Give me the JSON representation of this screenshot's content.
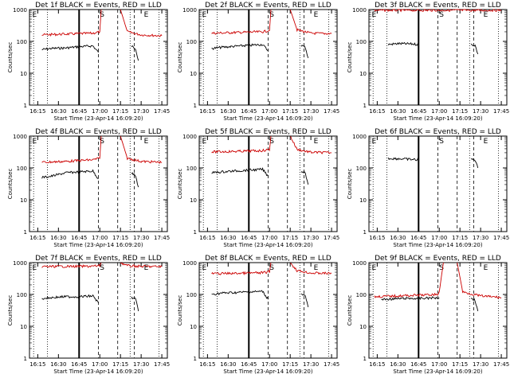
{
  "chart_data": [
    {
      "type": "line",
      "title": "Det 1f BLACK = Events, RED = LLD",
      "ylabel": "Counts/sec",
      "xlabel": "Start Time (23-Apr-14 16:09:20)",
      "x_ticks": [
        "16:15",
        "16:30",
        "16:45",
        "17:00",
        "17:15",
        "17:30",
        "17:45"
      ],
      "y_ticks": [
        "1",
        "10",
        "100",
        "1000"
      ],
      "ylim": [
        1,
        1000
      ],
      "y_scale": "log",
      "markers": [
        "E",
        "S",
        "E"
      ],
      "series": [
        {
          "color": "#000000",
          "segments": [
            [
              [
                "16:18",
                55
              ],
              [
                "16:25",
                60
              ],
              [
                "16:35",
                62
              ],
              [
                "16:45",
                68
              ],
              [
                "16:55",
                72
              ],
              [
                "16:59",
                45
              ]
            ],
            [
              [
                "17:23",
                70
              ],
              [
                "17:26",
                60
              ],
              [
                "17:28",
                25
              ]
            ]
          ]
        },
        {
          "color": "#cc0000",
          "segments": [
            [
              [
                "16:18",
                160
              ],
              [
                "16:35",
                170
              ],
              [
                "16:45",
                175
              ],
              [
                "16:55",
                180
              ],
              [
                "17:00",
                200
              ],
              [
                "17:01",
                1000
              ]
            ],
            [
              [
                "17:15",
                1000
              ],
              [
                "17:20",
                200
              ],
              [
                "17:30",
                160
              ],
              [
                "17:45",
                150
              ]
            ]
          ]
        }
      ]
    },
    {
      "type": "line",
      "title": "Det 2f BLACK = Events, RED = LLD",
      "ylabel": "Counts/sec",
      "xlabel": "Start Time (23-Apr-14 16:09:20)",
      "x_ticks": [
        "16:15",
        "16:30",
        "16:45",
        "17:00",
        "17:15",
        "17:30",
        "17:45"
      ],
      "y_ticks": [
        "1",
        "10",
        "100",
        "1000"
      ],
      "ylim": [
        1,
        1000
      ],
      "y_scale": "log",
      "markers": [
        "E",
        "S",
        "E"
      ],
      "series": [
        {
          "color": "#000000",
          "segments": [
            [
              [
                "16:18",
                60
              ],
              [
                "16:25",
                65
              ],
              [
                "16:35",
                70
              ],
              [
                "16:45",
                75
              ],
              [
                "16:55",
                80
              ],
              [
                "16:59",
                50
              ]
            ],
            [
              [
                "17:23",
                75
              ],
              [
                "17:26",
                65
              ],
              [
                "17:28",
                30
              ]
            ]
          ]
        },
        {
          "color": "#cc0000",
          "segments": [
            [
              [
                "16:18",
                180
              ],
              [
                "16:35",
                190
              ],
              [
                "16:45",
                195
              ],
              [
                "16:55",
                200
              ],
              [
                "17:00",
                220
              ],
              [
                "17:01",
                1000
              ]
            ],
            [
              [
                "17:15",
                1000
              ],
              [
                "17:20",
                230
              ],
              [
                "17:30",
                180
              ],
              [
                "17:45",
                175
              ]
            ]
          ]
        }
      ]
    },
    {
      "type": "line",
      "title": "Det 3f BLACK = Events, RED = LLD",
      "ylabel": "Counts/sec",
      "xlabel": "Start Time (23-Apr-14 16:09:20)",
      "x_ticks": [
        "16:15",
        "16:30",
        "16:45",
        "17:00",
        "17:15",
        "17:30",
        "17:45"
      ],
      "y_ticks": [
        "1",
        "10",
        "100",
        "1000"
      ],
      "ylim": [
        1,
        1000
      ],
      "y_scale": "log",
      "markers": [
        "E",
        "S",
        "E"
      ],
      "series": [
        {
          "color": "#000000",
          "segments": [
            [
              [
                "16:23",
                80
              ],
              [
                "16:30",
                85
              ],
              [
                "16:40",
                83
              ],
              [
                "16:45",
                80
              ]
            ],
            [
              [
                "17:23",
                80
              ],
              [
                "17:26",
                75
              ],
              [
                "17:28",
                40
              ]
            ]
          ]
        },
        {
          "color": "#cc0000",
          "segments": [
            [
              [
                "16:13",
                950
              ],
              [
                "16:45",
                950
              ],
              [
                "17:00",
                950
              ],
              [
                "17:30",
                950
              ],
              [
                "17:45",
                950
              ]
            ]
          ]
        }
      ]
    },
    {
      "type": "line",
      "title": "Det 4f BLACK = Events, RED = LLD",
      "ylabel": "Counts/sec",
      "xlabel": "Start Time (23-Apr-14 16:09:20)",
      "x_ticks": [
        "16:15",
        "16:30",
        "16:45",
        "17:00",
        "17:15",
        "17:30",
        "17:45"
      ],
      "y_ticks": [
        "1",
        "10",
        "100",
        "1000"
      ],
      "ylim": [
        1,
        1000
      ],
      "y_scale": "log",
      "markers": [
        "E",
        "S",
        "E"
      ],
      "series": [
        {
          "color": "#000000",
          "segments": [
            [
              [
                "16:18",
                50
              ],
              [
                "16:25",
                55
              ],
              [
                "16:35",
                70
              ],
              [
                "16:45",
                75
              ],
              [
                "16:55",
                80
              ],
              [
                "16:59",
                45
              ]
            ],
            [
              [
                "17:23",
                70
              ],
              [
                "17:26",
                55
              ],
              [
                "17:28",
                25
              ]
            ]
          ]
        },
        {
          "color": "#cc0000",
          "segments": [
            [
              [
                "16:18",
                150
              ],
              [
                "16:35",
                160
              ],
              [
                "16:45",
                170
              ],
              [
                "16:55",
                180
              ],
              [
                "17:00",
                200
              ],
              [
                "17:01",
                1000
              ]
            ],
            [
              [
                "17:15",
                1000
              ],
              [
                "17:20",
                200
              ],
              [
                "17:30",
                160
              ],
              [
                "17:45",
                150
              ]
            ]
          ]
        }
      ]
    },
    {
      "type": "line",
      "title": "Det 5f BLACK = Events, RED = LLD",
      "ylabel": "Counts/sec",
      "xlabel": "Start Time (23-Apr-14 16:09:20)",
      "x_ticks": [
        "16:15",
        "16:30",
        "16:45",
        "17:00",
        "17:15",
        "17:30",
        "17:45"
      ],
      "y_ticks": [
        "1",
        "10",
        "100",
        "1000"
      ],
      "ylim": [
        1,
        1000
      ],
      "y_scale": "log",
      "markers": [
        "E",
        "S",
        "E"
      ],
      "series": [
        {
          "color": "#000000",
          "segments": [
            [
              [
                "16:18",
                70
              ],
              [
                "16:25",
                75
              ],
              [
                "16:35",
                80
              ],
              [
                "16:45",
                85
              ],
              [
                "16:55",
                90
              ],
              [
                "16:59",
                55
              ]
            ],
            [
              [
                "17:23",
                80
              ],
              [
                "17:26",
                70
              ],
              [
                "17:28",
                30
              ]
            ]
          ]
        },
        {
          "color": "#cc0000",
          "segments": [
            [
              [
                "16:18",
                320
              ],
              [
                "16:35",
                330
              ],
              [
                "16:45",
                340
              ],
              [
                "16:55",
                350
              ],
              [
                "17:00",
                380
              ],
              [
                "17:01",
                1000
              ]
            ],
            [
              [
                "17:15",
                1000
              ],
              [
                "17:20",
                380
              ],
              [
                "17:30",
                310
              ],
              [
                "17:45",
                300
              ]
            ]
          ]
        }
      ]
    },
    {
      "type": "line",
      "title": "Det 6f BLACK = Events, RED = LLD",
      "ylabel": "Counts/sec",
      "xlabel": "Start Time (23-Apr-14 16:09:20)",
      "x_ticks": [
        "16:15",
        "16:30",
        "16:45",
        "17:00",
        "17:15",
        "17:30",
        "17:45"
      ],
      "y_ticks": [
        "1",
        "10",
        "100",
        "1000"
      ],
      "ylim": [
        1,
        1000
      ],
      "y_scale": "log",
      "markers": [
        "E",
        "S",
        "E"
      ],
      "series": [
        {
          "color": "#000000",
          "segments": [
            [
              [
                "16:23",
                200
              ],
              [
                "16:30",
                195
              ],
              [
                "16:40",
                185
              ],
              [
                "16:45",
                180
              ]
            ],
            [
              [
                "17:23",
                190
              ],
              [
                "17:26",
                180
              ],
              [
                "17:28",
                100
              ]
            ]
          ]
        }
      ]
    },
    {
      "type": "line",
      "title": "Det 7f BLACK = Events, RED = LLD",
      "ylabel": "Counts/sec",
      "xlabel": "Start Time (23-Apr-14 16:09:20)",
      "x_ticks": [
        "16:15",
        "16:30",
        "16:45",
        "17:00",
        "17:15",
        "17:30",
        "17:45"
      ],
      "y_ticks": [
        "1",
        "10",
        "100",
        "1000"
      ],
      "ylim": [
        1,
        1000
      ],
      "y_scale": "log",
      "markers": [
        "E",
        "S",
        "E"
      ],
      "series": [
        {
          "color": "#000000",
          "segments": [
            [
              [
                "16:18",
                75
              ],
              [
                "16:25",
                80
              ],
              [
                "16:35",
                85
              ],
              [
                "16:45",
                85
              ],
              [
                "16:55",
                90
              ],
              [
                "16:59",
                55
              ]
            ],
            [
              [
                "17:23",
                80
              ],
              [
                "17:26",
                70
              ],
              [
                "17:28",
                30
              ]
            ]
          ]
        },
        {
          "color": "#cc0000",
          "segments": [
            [
              [
                "16:18",
                750
              ],
              [
                "16:35",
                760
              ],
              [
                "16:45",
                760
              ],
              [
                "16:55",
                770
              ],
              [
                "17:00",
                800
              ],
              [
                "17:01",
                1000
              ]
            ],
            [
              [
                "17:15",
                1000
              ],
              [
                "17:20",
                800
              ],
              [
                "17:30",
                760
              ],
              [
                "17:45",
                750
              ]
            ]
          ]
        }
      ]
    },
    {
      "type": "line",
      "title": "Det 8f BLACK = Events, RED = LLD",
      "ylabel": "Counts/sec",
      "xlabel": "Start Time (23-Apr-14 16:09:20)",
      "x_ticks": [
        "16:15",
        "16:30",
        "16:45",
        "17:00",
        "17:15",
        "17:30",
        "17:45"
      ],
      "y_ticks": [
        "1",
        "10",
        "100",
        "1000"
      ],
      "ylim": [
        1,
        1000
      ],
      "y_scale": "log",
      "markers": [
        "E",
        "S",
        "E"
      ],
      "series": [
        {
          "color": "#000000",
          "segments": [
            [
              [
                "16:18",
                100
              ],
              [
                "16:25",
                110
              ],
              [
                "16:35",
                115
              ],
              [
                "16:45",
                120
              ],
              [
                "16:55",
                125
              ],
              [
                "16:59",
                70
              ]
            ],
            [
              [
                "17:23",
                110
              ],
              [
                "17:26",
                90
              ],
              [
                "17:28",
                40
              ]
            ]
          ]
        },
        {
          "color": "#cc0000",
          "segments": [
            [
              [
                "16:18",
                450
              ],
              [
                "16:35",
                460
              ],
              [
                "16:45",
                470
              ],
              [
                "16:55",
                480
              ],
              [
                "17:00",
                520
              ],
              [
                "17:01",
                1000
              ]
            ],
            [
              [
                "17:15",
                1000
              ],
              [
                "17:20",
                560
              ],
              [
                "17:30",
                470
              ],
              [
                "17:45",
                460
              ]
            ]
          ]
        }
      ]
    },
    {
      "type": "line",
      "title": "Det 9f BLACK = Events, RED = LLD",
      "ylabel": "Counts/sec",
      "xlabel": "Start Time (23-Apr-14 16:09:20)",
      "x_ticks": [
        "16:15",
        "16:30",
        "16:45",
        "17:00",
        "17:15",
        "17:30",
        "17:45"
      ],
      "y_ticks": [
        "1",
        "10",
        "100",
        "1000"
      ],
      "ylim": [
        1,
        1000
      ],
      "y_scale": "log",
      "markers": [
        "E",
        "S",
        "E"
      ],
      "series": [
        {
          "color": "#000000",
          "segments": [
            [
              [
                "16:18",
                70
              ],
              [
                "16:25",
                72
              ],
              [
                "16:35",
                75
              ],
              [
                "16:45",
                75
              ],
              [
                "16:55",
                78
              ],
              [
                "17:00",
                80
              ]
            ],
            [
              [
                "17:23",
                78
              ],
              [
                "17:26",
                65
              ],
              [
                "17:28",
                30
              ]
            ]
          ]
        },
        {
          "color": "#cc0000",
          "segments": [
            [
              [
                "16:13",
                85
              ],
              [
                "16:30",
                90
              ],
              [
                "16:45",
                95
              ],
              [
                "16:59",
                100
              ],
              [
                "17:00",
                120
              ],
              [
                "17:03",
                1000
              ]
            ],
            [
              [
                "17:13",
                1000
              ],
              [
                "17:17",
                120
              ],
              [
                "17:30",
                90
              ],
              [
                "17:45",
                80
              ]
            ]
          ]
        }
      ]
    }
  ]
}
